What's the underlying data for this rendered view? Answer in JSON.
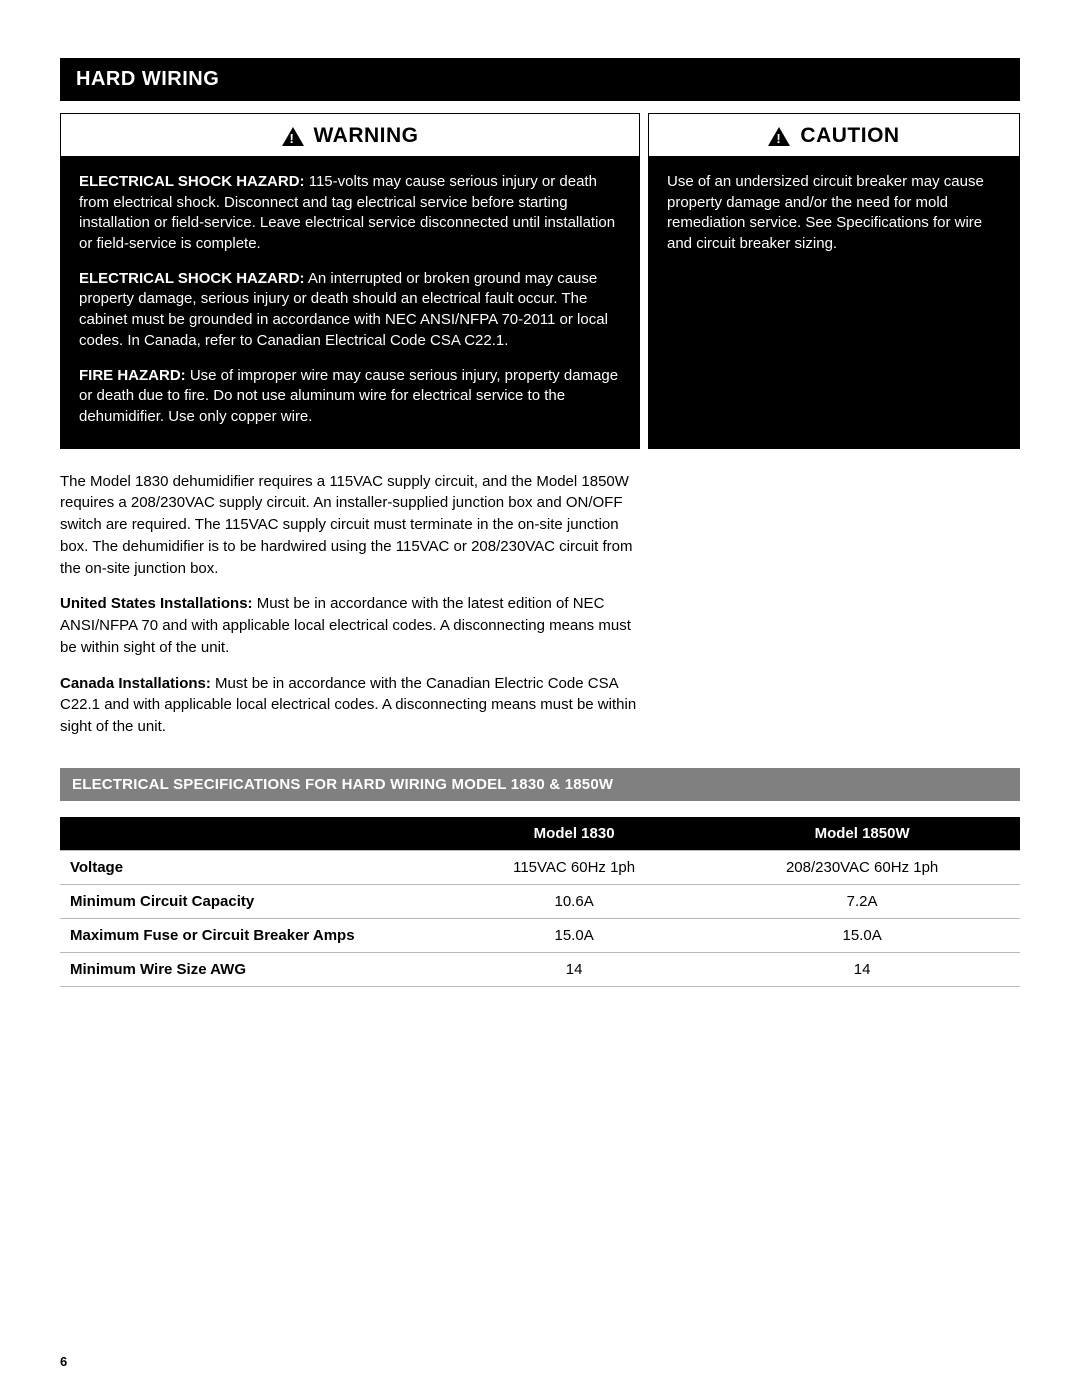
{
  "section_title": "HARD WIRING",
  "warning": {
    "title": "WARNING",
    "paras": [
      {
        "lead": "ELECTRICAL SHOCK HAZARD:",
        "text": " 115-volts may cause serious injury or death from electrical shock. Disconnect and tag electrical service before starting installation or field-service. Leave electrical service disconnected until installation or field-service is complete."
      },
      {
        "lead": "ELECTRICAL SHOCK HAZARD:",
        "text": " An interrupted or broken ground may cause property damage, serious injury or death should an electrical fault occur. The cabinet must be grounded in accordance with NEC ANSI/NFPA 70-2011 or local codes. In Canada, refer to Canadian Electrical Code CSA C22.1."
      },
      {
        "lead": "FIRE HAZARD:",
        "text": " Use of improper wire may cause serious injury, property damage or death due to fire. Do not use aluminum wire for electrical service to the dehumidifier. Use only copper wire."
      }
    ]
  },
  "caution": {
    "title": "CAUTION",
    "text": "Use of an undersized circuit breaker may cause property damage and/or the need for mold remediation service. See Specifications for wire and circuit breaker sizing."
  },
  "body": {
    "p1_a": "The Model 1830 dehumidifier requires a 115VAC supply circuit, and the Model 1850W requires a 208/230VAC supply circuit. An installer-supplied junction box and ON/OFF switch are required. The 115VAC supply circuit must terminate in the on-site junction box. The dehumidifier is to be hardwired using the 115VAC or 208/230VAC circuit from the on-site junction box.",
    "p2_lead": "United States Installations:",
    "p2_text": " Must be in accordance with the latest edition of NEC ANSI/NFPA 70 and with applicable local electrical codes. A disconnecting means must be within sight of the unit.",
    "p3_lead": "Canada Installations:",
    "p3_text": " Must be in accordance with the Canadian Electric Code CSA C22.1 and with applicable local electrical codes. A disconnecting means must be within sight of the unit."
  },
  "spec": {
    "title": "ELECTRICAL SPECIFICATIONS FOR HARD WIRING MODEL 1830 & 1850W",
    "columns": [
      "Model 1830",
      "Model 1850W"
    ],
    "rows": [
      {
        "label": "Voltage",
        "v": [
          "115VAC 60Hz 1ph",
          "208/230VAC 60Hz 1ph"
        ]
      },
      {
        "label": "Minimum Circuit Capacity",
        "v": [
          "10.6A",
          "7.2A"
        ]
      },
      {
        "label": "Maximum Fuse or Circuit Breaker Amps",
        "v": [
          "15.0A",
          "15.0A"
        ]
      },
      {
        "label": "Minimum Wire Size AWG",
        "v": [
          "14",
          "14"
        ]
      }
    ]
  },
  "page_number": "6",
  "colors": {
    "black": "#000000",
    "white": "#ffffff",
    "grey_bar": "#808080",
    "rule": "#b8b8b8"
  }
}
